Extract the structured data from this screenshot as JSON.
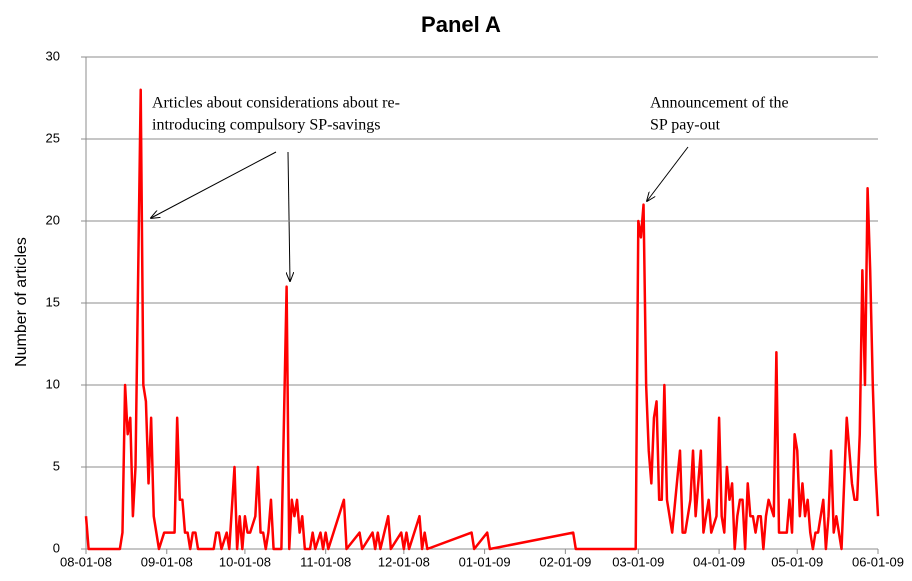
{
  "chart_data": {
    "type": "line",
    "title": "Panel A",
    "y_label": "Number of articles",
    "color": "#ff0000",
    "grid": true,
    "annotations": [
      {
        "lines": [
          "Articles about considerations about re-",
          "introducing compulsory SP-savings"
        ]
      },
      {
        "lines": [
          "Announcement of the",
          "SP pay-out"
        ]
      }
    ],
    "xlim": [
      "2008-08-01",
      "2009-06-01"
    ],
    "xticks": [
      {
        "value": "2008-08-01",
        "label": "08-01-08"
      },
      {
        "value": "2008-09-01",
        "label": "09-01-08"
      },
      {
        "value": "2008-10-01",
        "label": "10-01-08"
      },
      {
        "value": "2008-11-01",
        "label": "11-01-08"
      },
      {
        "value": "2008-12-01",
        "label": "12-01-08"
      },
      {
        "value": "2009-01-01",
        "label": "01-01-09"
      },
      {
        "value": "2009-02-01",
        "label": "02-01-09"
      },
      {
        "value": "2009-03-01",
        "label": "03-01-09"
      },
      {
        "value": "2009-04-01",
        "label": "04-01-09"
      },
      {
        "value": "2009-05-01",
        "label": "05-01-09"
      },
      {
        "value": "2009-06-01",
        "label": "06-01-09"
      }
    ],
    "ylim": [
      0,
      30
    ],
    "yticks": [
      0,
      5,
      10,
      15,
      20,
      25,
      30
    ],
    "x": [
      "2008-08-01",
      "2008-08-02",
      "2008-08-14",
      "2008-08-15",
      "2008-08-16",
      "2008-08-17",
      "2008-08-18",
      "2008-08-19",
      "2008-08-20",
      "2008-08-22",
      "2008-08-23",
      "2008-08-24",
      "2008-08-25",
      "2008-08-26",
      "2008-08-27",
      "2008-08-29",
      "2008-08-31",
      "2008-09-02",
      "2008-09-04",
      "2008-09-05",
      "2008-09-06",
      "2008-09-07",
      "2008-09-08",
      "2008-09-09",
      "2008-09-10",
      "2008-09-11",
      "2008-09-12",
      "2008-09-13",
      "2008-09-19",
      "2008-09-20",
      "2008-09-21",
      "2008-09-22",
      "2008-09-24",
      "2008-09-25",
      "2008-09-27",
      "2008-09-28",
      "2008-09-29",
      "2008-09-30",
      "2008-10-01",
      "2008-10-02",
      "2008-10-03",
      "2008-10-05",
      "2008-10-06",
      "2008-10-07",
      "2008-10-08",
      "2008-10-09",
      "2008-10-10",
      "2008-10-11",
      "2008-10-12",
      "2008-10-15",
      "2008-10-17",
      "2008-10-18",
      "2008-10-19",
      "2008-10-20",
      "2008-10-21",
      "2008-10-22",
      "2008-10-23",
      "2008-10-24",
      "2008-10-26",
      "2008-10-27",
      "2008-10-28",
      "2008-10-30",
      "2008-10-31",
      "2008-11-01",
      "2008-11-02",
      "2008-11-08",
      "2008-11-09",
      "2008-11-14",
      "2008-11-15",
      "2008-11-19",
      "2008-11-20",
      "2008-11-21",
      "2008-11-22",
      "2008-11-25",
      "2008-11-26",
      "2008-11-30",
      "2008-12-01",
      "2008-12-02",
      "2008-12-03",
      "2008-12-07",
      "2008-12-08",
      "2008-12-09",
      "2008-12-10",
      "2008-12-27",
      "2008-12-28",
      "2009-01-02",
      "2009-01-03",
      "2009-02-04",
      "2009-02-05",
      "2009-02-28",
      "2009-03-01",
      "2009-03-02",
      "2009-03-03",
      "2009-03-04",
      "2009-03-05",
      "2009-03-06",
      "2009-03-07",
      "2009-03-08",
      "2009-03-09",
      "2009-03-10",
      "2009-03-11",
      "2009-03-12",
      "2009-03-13",
      "2009-03-14",
      "2009-03-17",
      "2009-03-18",
      "2009-03-19",
      "2009-03-20",
      "2009-03-21",
      "2009-03-22",
      "2009-03-23",
      "2009-03-24",
      "2009-03-25",
      "2009-03-26",
      "2009-03-27",
      "2009-03-28",
      "2009-03-29",
      "2009-03-31",
      "2009-04-01",
      "2009-04-02",
      "2009-04-03",
      "2009-04-04",
      "2009-04-05",
      "2009-04-06",
      "2009-04-07",
      "2009-04-08",
      "2009-04-09",
      "2009-04-10",
      "2009-04-11",
      "2009-04-12",
      "2009-04-13",
      "2009-04-14",
      "2009-04-15",
      "2009-04-16",
      "2009-04-17",
      "2009-04-18",
      "2009-04-19",
      "2009-04-20",
      "2009-04-22",
      "2009-04-23",
      "2009-04-24",
      "2009-04-25",
      "2009-04-27",
      "2009-04-28",
      "2009-04-29",
      "2009-04-30",
      "2009-05-01",
      "2009-05-02",
      "2009-05-03",
      "2009-05-04",
      "2009-05-05",
      "2009-05-06",
      "2009-05-07",
      "2009-05-08",
      "2009-05-09",
      "2009-05-10",
      "2009-05-11",
      "2009-05-12",
      "2009-05-13",
      "2009-05-14",
      "2009-05-15",
      "2009-05-16",
      "2009-05-17",
      "2009-05-18",
      "2009-05-20",
      "2009-05-21",
      "2009-05-22",
      "2009-05-23",
      "2009-05-24",
      "2009-05-25",
      "2009-05-26",
      "2009-05-27",
      "2009-05-28",
      "2009-05-29",
      "2009-05-30",
      "2009-05-31",
      "2009-06-01"
    ],
    "values": [
      2,
      0,
      0,
      1,
      10,
      7,
      8,
      2,
      5,
      28,
      10,
      9,
      4,
      8,
      2,
      0,
      1,
      1,
      1,
      8,
      3,
      3,
      1,
      1,
      0,
      1,
      1,
      0,
      0,
      1,
      1,
      0,
      1,
      0,
      5,
      0,
      2,
      0,
      2,
      1,
      1,
      2,
      5,
      1,
      1,
      0,
      1,
      3,
      0,
      0,
      16,
      0,
      3,
      2,
      3,
      1,
      2,
      0,
      0,
      1,
      0,
      1,
      0,
      1,
      0,
      3,
      0,
      1,
      0,
      1,
      0,
      1,
      0,
      2,
      0,
      1,
      0,
      1,
      0,
      2,
      0,
      1,
      0,
      1,
      0,
      1,
      0,
      1,
      0,
      0,
      20,
      19,
      21,
      10,
      6,
      4,
      8,
      9,
      3,
      3,
      10,
      3,
      2,
      1,
      6,
      1,
      1,
      2,
      3,
      6,
      2,
      4,
      6,
      1,
      2,
      3,
      1,
      2,
      8,
      2,
      1,
      5,
      3,
      4,
      0,
      2,
      3,
      3,
      0,
      4,
      2,
      2,
      1,
      2,
      2,
      0,
      2,
      3,
      2,
      12,
      1,
      1,
      1,
      3,
      1,
      7,
      6,
      2,
      4,
      2,
      3,
      1,
      0,
      1,
      1,
      2,
      3,
      0,
      2,
      6,
      1,
      2,
      1,
      0,
      8,
      6,
      4,
      3,
      3,
      7,
      17,
      10,
      22,
      17,
      10,
      5,
      2
    ]
  }
}
